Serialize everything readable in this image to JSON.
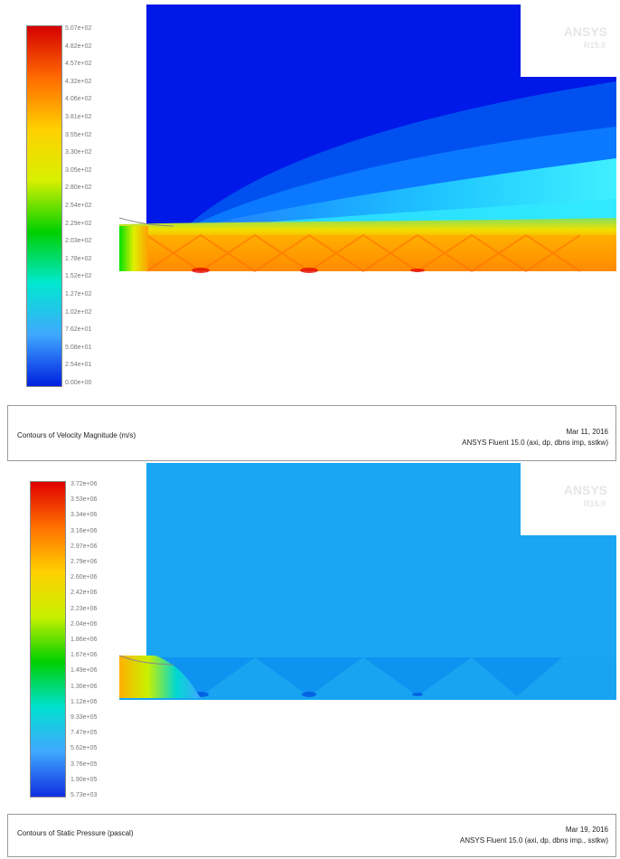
{
  "panels": [
    {
      "colorbar": {
        "colors": [
          "#d40000",
          "#ff6a00",
          "#ffd000",
          "#d8f000",
          "#00d000",
          "#00e8d0",
          "#40a8ff",
          "#0020e0"
        ],
        "labels": [
          "5.07e+02",
          "4.82e+02",
          "4.57e+02",
          "4.32e+02",
          "4.06e+02",
          "3.81e+02",
          "3.55e+02",
          "3.30e+02",
          "3.05e+02",
          "2.80e+02",
          "2.54e+02",
          "2.29e+02",
          "2.03e+02",
          "1.78e+02",
          "1.52e+02",
          "1.27e+02",
          "1.02e+02",
          "7.62e+01",
          "5.08e+01",
          "2.54e+01",
          "0.00e+00"
        ]
      },
      "logo": {
        "brand": "ANSYS",
        "version": "R15.0"
      },
      "caption": {
        "title": "Contours of Velocity Magnitude (m/s)",
        "date": "Mar 11, 2016",
        "software": "ANSYS Fluent 15.0 (axi, dp, dbns imp, sstkw)"
      }
    },
    {
      "colorbar": {
        "colors": [
          "#e00000",
          "#ff7000",
          "#ffd000",
          "#c8f000",
          "#00d000",
          "#00e0d0",
          "#40a8ff",
          "#1030e0"
        ],
        "labels": [
          "3.72e+06",
          "3.53e+06",
          "3.34e+06",
          "3.16e+06",
          "2.97e+06",
          "2.79e+06",
          "2.60e+06",
          "2.42e+06",
          "2.23e+06",
          "2.04e+06",
          "1.86e+06",
          "1.67e+06",
          "1.49e+06",
          "1.30e+06",
          "1.12e+06",
          "9.33e+05",
          "7.47e+05",
          "5.62e+05",
          "3.76e+05",
          "1.90e+05",
          "5.73e+03"
        ]
      },
      "logo": {
        "brand": "ANSYS",
        "version": "R15.0"
      },
      "caption": {
        "title": "Contours of Static Pressure (pascal)",
        "date": "Mar 19, 2016",
        "software": "ANSYS Fluent 15.0 (axi, dp, dbns imp., sstkw)"
      }
    }
  ]
}
